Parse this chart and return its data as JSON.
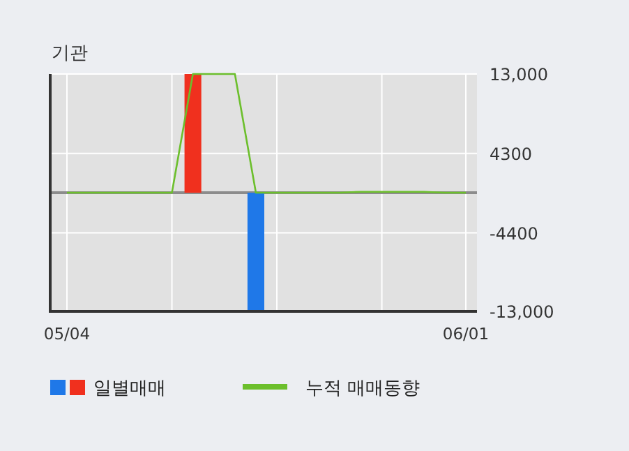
{
  "chart_data": {
    "type": "bar",
    "title": "기관",
    "categories": [
      "05/04",
      null,
      null,
      null,
      null,
      null,
      null,
      null,
      null,
      null,
      null,
      null,
      null,
      null,
      null,
      null,
      null,
      null,
      null,
      "06/01"
    ],
    "series": [
      {
        "name": "일별매매",
        "colors": [
          "#1f78e8",
          "#1f78e8",
          "#1f78e8",
          "#1f78e8",
          "#1f78e8",
          "#1f78e8",
          "#f0301e",
          "#1f78e8",
          "#1f78e8",
          "#1f78e8",
          "#1f78e8",
          "#1f78e8",
          "#1f78e8",
          "#1f78e8",
          "#1f78e8",
          "#1f78e8",
          "#1f78e8",
          "#1f78e8",
          "#1f78e8",
          "#1f78e8"
        ],
        "values": [
          0,
          0,
          0,
          0,
          0,
          0,
          13000,
          0,
          0,
          -13000,
          0,
          0,
          0,
          0,
          0,
          0,
          0,
          0,
          0,
          0
        ]
      },
      {
        "name": "누적 매매동향",
        "type": "line",
        "color": "#6cbf2c",
        "values": [
          0,
          0,
          0,
          0,
          0,
          0,
          13000,
          13000,
          13000,
          0,
          0,
          0,
          0,
          0,
          100,
          100,
          100,
          100,
          0,
          0
        ]
      }
    ],
    "ylim": [
      -13000,
      13000
    ],
    "yticks": [
      {
        "value": 13000,
        "label": "13,000"
      },
      4300,
      -4400,
      {
        "value": -13000,
        "label": "-13,000"
      }
    ],
    "ref_lines": [
      {
        "axis": "y",
        "value": 0,
        "color": "#8c8c8c"
      }
    ],
    "grid": true,
    "legend": "bottom"
  }
}
